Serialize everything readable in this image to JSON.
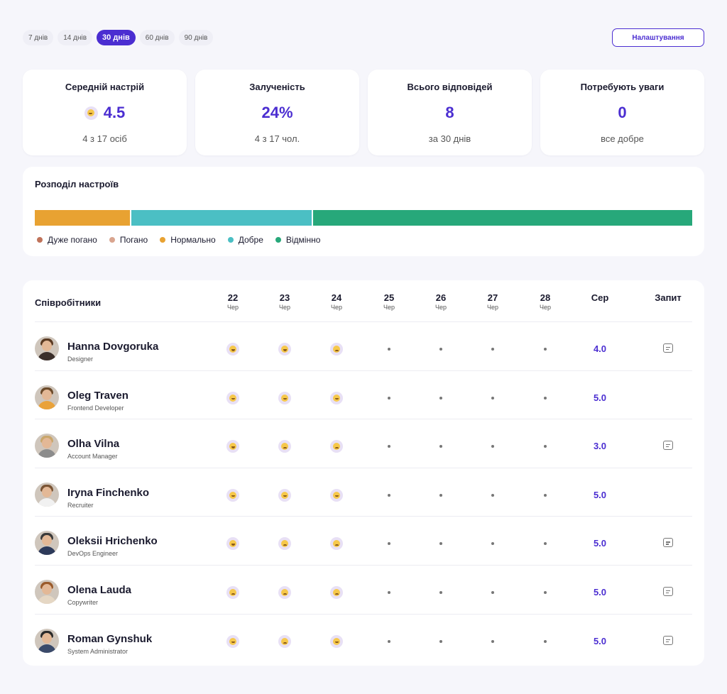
{
  "periods": [
    {
      "label": "7 днів",
      "active": false
    },
    {
      "label": "14 днів",
      "active": false
    },
    {
      "label": "30 днів",
      "active": true
    },
    {
      "label": "60 днів",
      "active": false
    },
    {
      "label": "90 днів",
      "active": false
    }
  ],
  "settings_label": "Налаштування",
  "stats": [
    {
      "title": "Середній настрій",
      "value": "4.5",
      "sub": "4 з 17 осіб",
      "face": true
    },
    {
      "title": "Залученість",
      "value": "24%",
      "sub": "4 з 17 чол.",
      "face": false
    },
    {
      "title": "Всього відповідей",
      "value": "8",
      "sub": "за 30 днів",
      "face": false
    },
    {
      "title": "Потребують уваги",
      "value": "0",
      "sub": "все добре",
      "face": false
    }
  ],
  "distribution": {
    "title": "Розподіл настроїв",
    "segments": [
      {
        "name": "Нормально",
        "fraction": 0.145,
        "color": "#e8a232"
      },
      {
        "name": "Добре",
        "fraction": 0.276,
        "color": "#4bbfc4"
      },
      {
        "name": "Відмінно",
        "fraction": 0.579,
        "color": "#27a87a"
      }
    ],
    "legend": [
      {
        "label": "Дуже погано",
        "color": "#c0735a"
      },
      {
        "label": "Погано",
        "color": "#d9a58f"
      },
      {
        "label": "Нормально",
        "color": "#e8a232"
      },
      {
        "label": "Добре",
        "color": "#4bbfc4"
      },
      {
        "label": "Відмінно",
        "color": "#27a87a"
      }
    ]
  },
  "table": {
    "title": "Співробітники",
    "days": [
      {
        "day": "22",
        "weekday": "Чер"
      },
      {
        "day": "23",
        "weekday": "Чер"
      },
      {
        "day": "24",
        "weekday": "Чер"
      },
      {
        "day": "25",
        "weekday": "Чер"
      },
      {
        "day": "26",
        "weekday": "Чер"
      },
      {
        "day": "27",
        "weekday": "Чер"
      },
      {
        "day": "28",
        "weekday": "Чер"
      }
    ],
    "avg_label": "Сер",
    "request_label": "Запит",
    "employees": [
      {
        "name": "Hanna Dovgoruka",
        "role": "Designer",
        "moods": [
          "happy",
          "happy",
          "sad",
          null,
          null,
          null,
          null
        ],
        "avg": "4.0",
        "request": true,
        "hair": "#5a3a22",
        "shirt": "#3b2f2a"
      },
      {
        "name": "Oleg Traven",
        "role": "Frontend Developer",
        "moods": [
          "happy",
          "happy",
          "happy",
          null,
          null,
          null,
          null
        ],
        "avg": "5.0",
        "request": false,
        "hair": "#6b4a2a",
        "shirt": "#e9a23a"
      },
      {
        "name": "Olha Vilna",
        "role": "Account Manager",
        "moods": [
          "happy",
          "sad",
          "sad",
          null,
          null,
          null,
          null
        ],
        "avg": "3.0",
        "request": true,
        "hair": "#c9a66b",
        "shirt": "#8c8c8c"
      },
      {
        "name": "Iryna Finchenko",
        "role": "Recruiter",
        "moods": [
          "happy",
          "happy",
          "happy",
          null,
          null,
          null,
          null
        ],
        "avg": "5.0",
        "request": false,
        "hair": "#7a5434",
        "shirt": "#f1f1f1"
      },
      {
        "name": "Oleksii Hrichenko",
        "role": "DevOps Engineer",
        "moods": [
          "happy",
          "sad",
          "sad",
          null,
          null,
          null,
          null
        ],
        "avg": "5.0",
        "request": true,
        "hair": "#3a3a3a",
        "shirt": "#2d3a5a"
      },
      {
        "name": "Olena Lauda",
        "role": "Copywriter",
        "moods": [
          "sad",
          "sad",
          "sad",
          null,
          null,
          null,
          null
        ],
        "avg": "5.0",
        "request": true,
        "hair": "#9a5a2a",
        "shirt": "#e5d7c4"
      },
      {
        "name": "Roman Gynshuk",
        "role": "System Administrator",
        "moods": [
          "happy",
          "sad",
          "happy",
          null,
          null,
          null,
          null
        ],
        "avg": "5.0",
        "request": true,
        "hair": "#2a2a2a",
        "shirt": "#3a4a6a"
      }
    ]
  }
}
